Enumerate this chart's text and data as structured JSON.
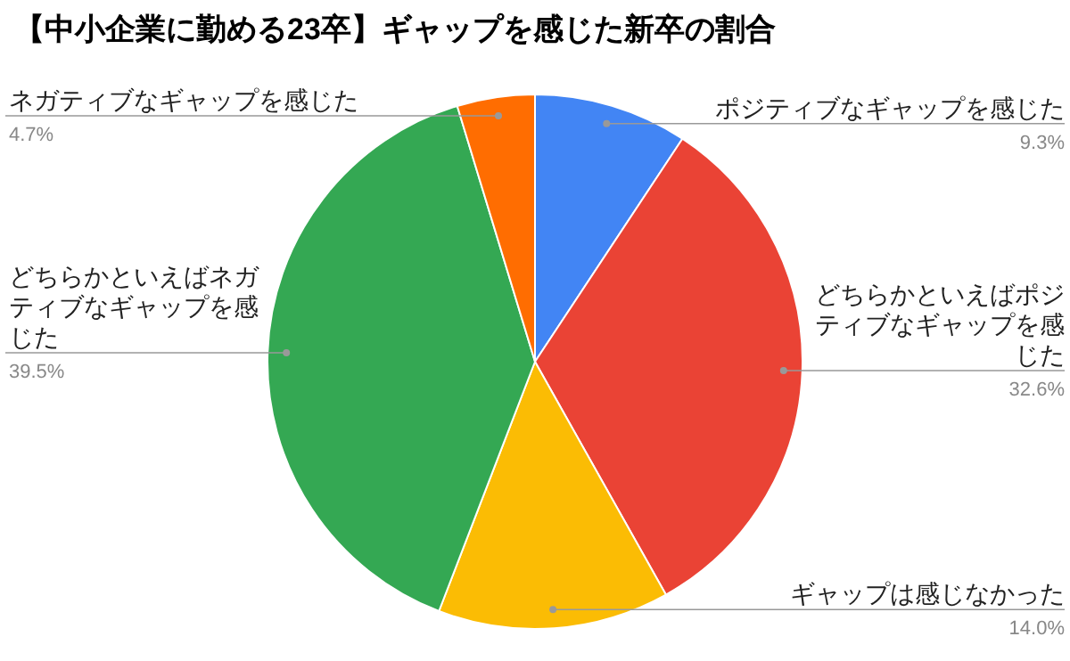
{
  "chart_data": {
    "type": "pie",
    "title": "【中小企業に勤める23卒】ギャップを感じた新卒の割合",
    "categories": [
      "ポジティブなギャップを感じた",
      "どちらかといえばポジティブなギャップを感じた",
      "ギャップは感じなかった",
      "どちらかといえばネガティブなギャップを感じた",
      "ネガティブなギャップを感じた"
    ],
    "values": [
      9.3,
      32.6,
      14.0,
      39.5,
      4.7
    ],
    "colors": [
      "#4285f4",
      "#ea4335",
      "#fbbc04",
      "#34a853",
      "#ff6d01"
    ],
    "value_labels": [
      "9.3%",
      "32.6%",
      "14.0%",
      "39.5%",
      "4.7%"
    ]
  }
}
